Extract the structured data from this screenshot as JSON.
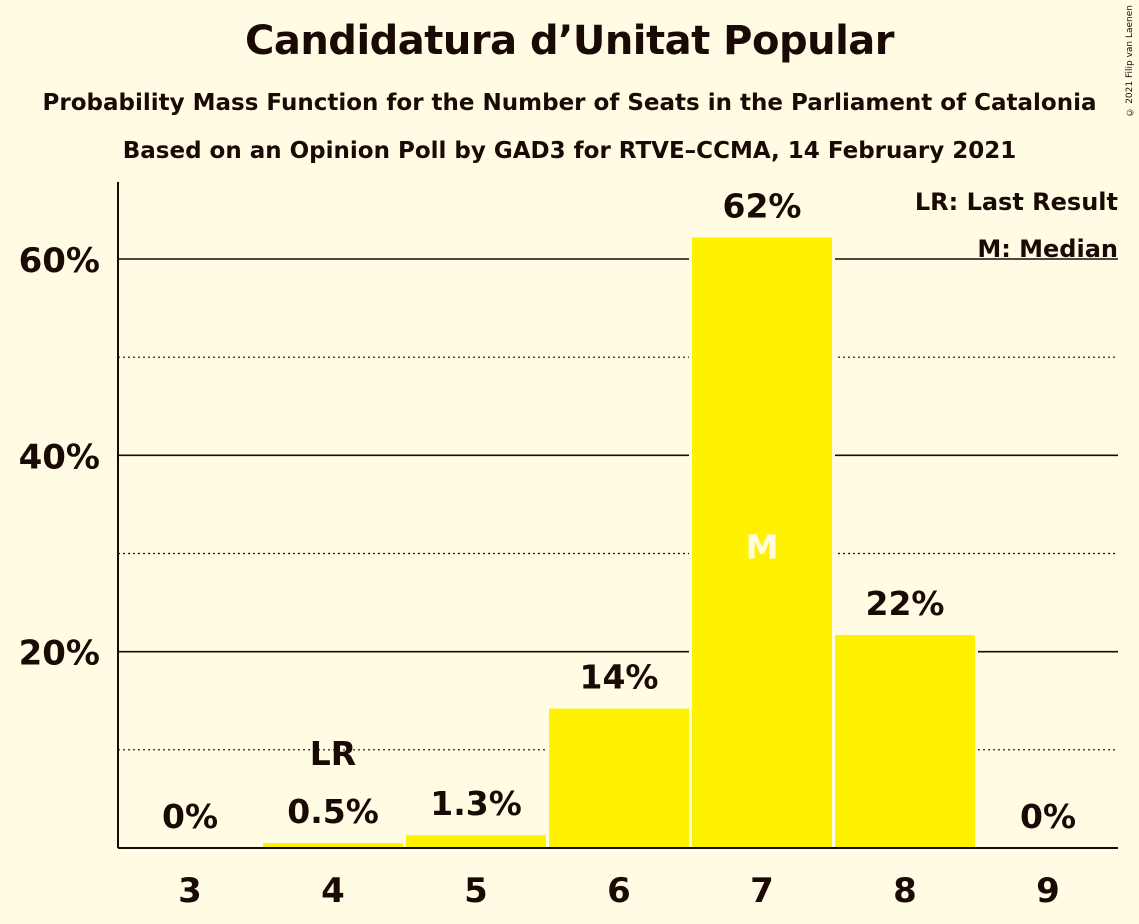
{
  "chart_data": {
    "type": "bar",
    "title": "Candidatura d’Unitat Popular",
    "subtitle": "Probability Mass Function for the Number of Seats in the Parliament of Catalonia",
    "subtitle2": "Based on an Opinion Poll by GAD3 for RTVE–CCMA, 14 February 2021",
    "categories": [
      "3",
      "4",
      "5",
      "6",
      "7",
      "8",
      "9"
    ],
    "values": [
      0,
      0.5,
      1.3,
      14.2,
      62.2,
      21.7,
      0
    ],
    "data_labels": [
      "0%",
      "0.5%",
      "1.3%",
      "14%",
      "62%",
      "22%",
      "0%"
    ],
    "ylim": [
      0,
      68
    ],
    "y_major_ticks": [
      20,
      40,
      60
    ],
    "y_tick_labels": [
      "20%",
      "40%",
      "60%"
    ],
    "y_minor_ticks": [
      10,
      30,
      50
    ],
    "last_result_category": "4",
    "last_result_marker": "LR",
    "median_category": "7",
    "median_marker": "M",
    "legend": {
      "last_result": "LR: Last Result",
      "median": "M: Median",
      "placement": "top-right"
    },
    "bar_color": "#FFF200",
    "background_color": "#FFFCE3",
    "text_color": "#1a0a06"
  },
  "copyright": "© 2021 Filip van Laenen"
}
